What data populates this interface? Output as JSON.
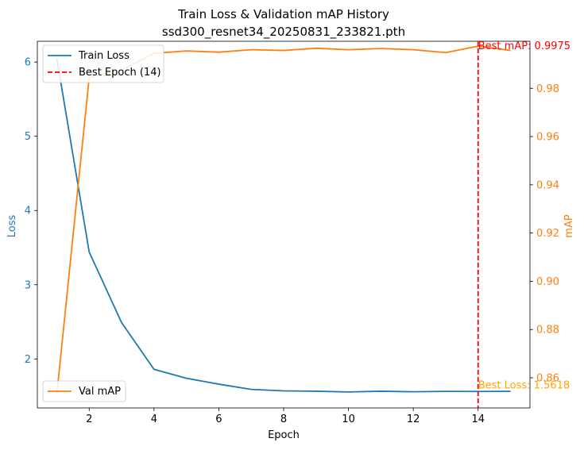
{
  "chart_data": {
    "type": "line",
    "title": "Train Loss & Validation mAP History",
    "subtitle": "ssd300_resnet34_20250831_233821.pth",
    "xlabel": "Epoch",
    "ylabel_left": "Loss",
    "ylabel_right": "mAP",
    "xlim": [
      0.4,
      15.6
    ],
    "ylim_left": [
      1.34,
      6.28
    ],
    "ylim_right": [
      0.8475,
      0.9995
    ],
    "x_ticks": [
      2,
      4,
      6,
      8,
      10,
      12,
      14
    ],
    "y_ticks_left": [
      2,
      3,
      4,
      5,
      6
    ],
    "y_ticks_right": [
      0.86,
      0.88,
      0.9,
      0.92,
      0.94,
      0.96,
      0.98
    ],
    "right_tick_labels": [
      "0.86",
      "0.88",
      "0.90",
      "0.92",
      "0.94",
      "0.96",
      "0.98"
    ],
    "grid": false,
    "series": [
      {
        "name": "Train Loss",
        "axis": "left",
        "color": "#1f77b4",
        "x": [
          1,
          2,
          3,
          4,
          5,
          6,
          7,
          8,
          9,
          10,
          11,
          12,
          13,
          14,
          15
        ],
        "values": [
          6.05,
          3.44,
          2.49,
          1.86,
          1.74,
          1.66,
          1.59,
          1.57,
          1.565,
          1.555,
          1.565,
          1.558,
          1.563,
          1.5618,
          1.563
        ]
      },
      {
        "name": "Val mAP",
        "axis": "right",
        "color": "#ff7f0e",
        "x": [
          1,
          2,
          3,
          4,
          5,
          6,
          7,
          8,
          9,
          10,
          11,
          12,
          13,
          14,
          15
        ],
        "values": [
          0.853,
          0.9845,
          0.9875,
          0.9945,
          0.9955,
          0.995,
          0.996,
          0.9957,
          0.9966,
          0.996,
          0.9965,
          0.996,
          0.9948,
          0.9975,
          0.9957
        ]
      }
    ],
    "best_epoch": {
      "epoch": 14,
      "legend_label": "Best Epoch (14)",
      "color": "#ff0000",
      "map_value": 0.9975,
      "loss_value": 1.5618,
      "map_label": "Best mAP: 0.9975",
      "loss_label": "Best Loss: 1.5618",
      "map_label_color": "#ff0000",
      "loss_label_color": "#ffa500"
    },
    "legends": {
      "upper_left": [
        "Train Loss",
        "Best Epoch (14)"
      ],
      "lower_left": [
        "Val mAP"
      ]
    },
    "colors": {
      "left_axis": "#1f77b4",
      "right_axis": "#ff7f0e"
    }
  }
}
